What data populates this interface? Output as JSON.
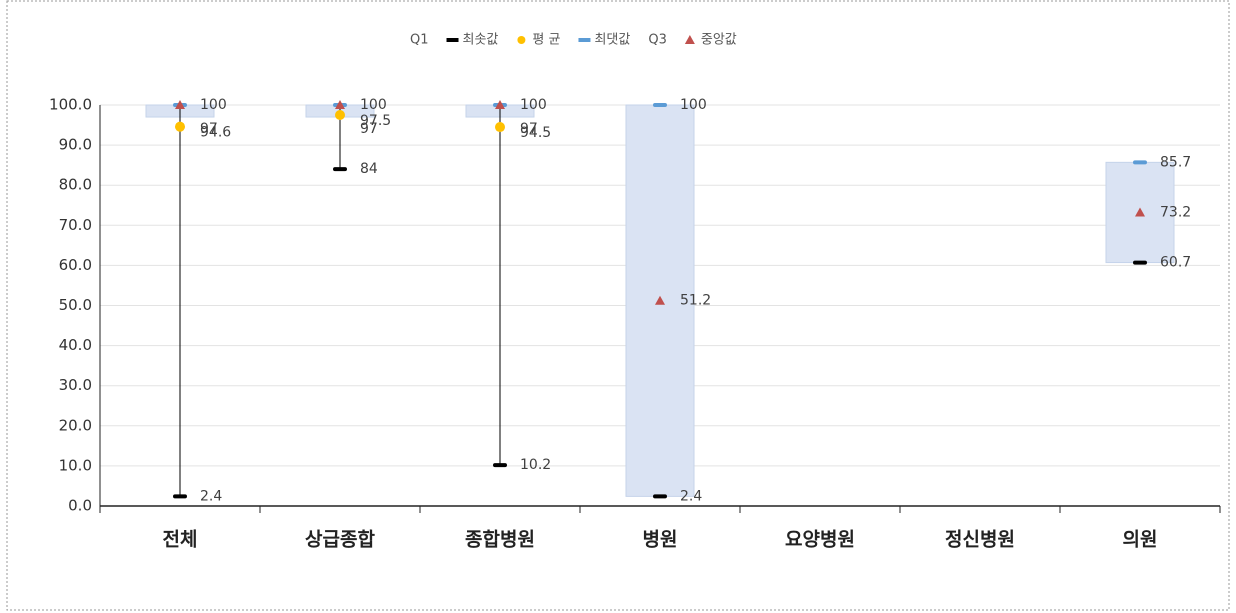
{
  "chart_data": {
    "type": "box",
    "categories": [
      "전체",
      "상급종합",
      "종합병원",
      "병원",
      "요양병원",
      "정신병원",
      "의원"
    ],
    "series": [
      {
        "name": "Q1",
        "color": "#dae3f3",
        "values": [
          97,
          97,
          97,
          2.4,
          null,
          null,
          60.7
        ]
      },
      {
        "name": "최솟값",
        "color": "#000000",
        "values": [
          2.4,
          84,
          10.2,
          2.4,
          null,
          null,
          60.7
        ]
      },
      {
        "name": "평 균",
        "color": "#ffc000",
        "values": [
          94.6,
          97.5,
          94.5,
          null,
          null,
          null,
          null
        ]
      },
      {
        "name": "최댓값",
        "color": "#5b9bd5",
        "values": [
          100,
          100,
          100,
          100,
          null,
          null,
          85.7
        ]
      },
      {
        "name": "Q3",
        "color": "#dae3f3",
        "values": [
          100,
          100,
          100,
          100,
          null,
          null,
          85.7
        ]
      },
      {
        "name": "중앙값",
        "color": "#c0504d",
        "values": [
          100,
          100,
          100,
          51.2,
          null,
          null,
          73.2
        ]
      }
    ],
    "ylim": [
      0,
      100
    ],
    "yticks": [
      {
        "value": 0,
        "label": "0.0"
      },
      {
        "value": 10,
        "label": "10.0"
      },
      {
        "value": 20,
        "label": "20.0"
      },
      {
        "value": 30,
        "label": "30.0"
      },
      {
        "value": 40,
        "label": "40.0"
      },
      {
        "value": 50,
        "label": "50.0"
      },
      {
        "value": 60,
        "label": "60.0"
      },
      {
        "value": 70,
        "label": "70.0"
      },
      {
        "value": 80,
        "label": "80.0"
      },
      {
        "value": 90,
        "label": "90.0"
      },
      {
        "value": 100,
        "label": "100.0"
      }
    ],
    "grid": true
  }
}
